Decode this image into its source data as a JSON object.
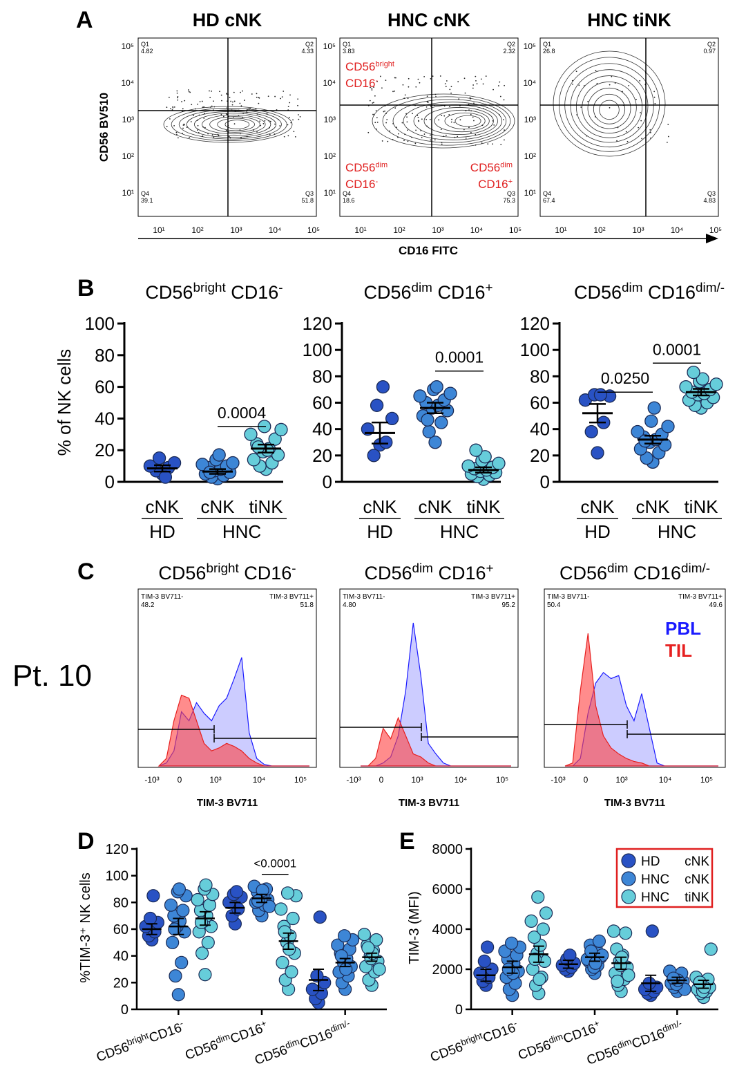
{
  "panel_labels": {
    "a": "A",
    "b": "B",
    "c": "C",
    "d": "D",
    "e": "E"
  },
  "patient_label": "Pt. 10",
  "flow": {
    "y_label": "CD56 BV510",
    "x_label": "CD16 FITC",
    "tick_labels": [
      "10¹",
      "10²",
      "10³",
      "10⁴",
      "10⁵"
    ],
    "gate_labels": [
      {
        "line1": "CD56",
        "sup1": "bright",
        "line2": "CD16",
        "sup2": "-"
      },
      {
        "line1": "CD56",
        "sup1": "dim",
        "line2": "CD16",
        "sup2": "-"
      },
      {
        "line1": "CD56",
        "sup1": "dim",
        "line2": "CD16",
        "sup2": "+"
      }
    ],
    "panels": [
      {
        "title": "HD cNK",
        "q": [
          {
            "name": "Q1",
            "val": "4.82"
          },
          {
            "name": "Q2",
            "val": "4.33"
          },
          {
            "name": "Q4",
            "val": "39.1"
          },
          {
            "name": "Q3",
            "val": "51.8"
          }
        ]
      },
      {
        "title": "HNC cNK",
        "q": [
          {
            "name": "Q1",
            "val": "3.83"
          },
          {
            "name": "Q2",
            "val": "2.32"
          },
          {
            "name": "Q4",
            "val": "18.6"
          },
          {
            "name": "Q3",
            "val": "75.3"
          }
        ]
      },
      {
        "title": "HNC tiNK",
        "q": [
          {
            "name": "Q1",
            "val": "26.8"
          },
          {
            "name": "Q2",
            "val": "0.97"
          },
          {
            "name": "Q4",
            "val": "67.4"
          },
          {
            "name": "Q3",
            "val": "4.83"
          }
        ]
      }
    ]
  },
  "chart_data": [
    {
      "type": "scatter",
      "panel": "B",
      "title": {
        "base": "CD56",
        "sup": "bright",
        "base2": "CD16",
        "sup2": "-"
      },
      "ylabel": "% of NK cells",
      "ylim": [
        0,
        100
      ],
      "yticks": [
        "0",
        "20",
        "40",
        "60",
        "80",
        "100"
      ],
      "categories": [
        "cNK",
        "cNK",
        "tiNK"
      ],
      "groups": [
        "HD",
        "HNC"
      ],
      "colors": [
        "#2952c4",
        "#3d86d6",
        "#66cdda"
      ],
      "means": [
        8.5,
        6.5,
        21
      ],
      "sems": [
        2,
        1.5,
        2.5
      ],
      "points": [
        [
          5,
          7,
          9,
          10,
          12,
          15,
          3
        ],
        [
          2,
          3,
          4,
          5,
          6,
          7,
          8,
          9,
          10,
          11,
          12,
          14,
          17,
          6
        ],
        [
          8,
          10,
          12,
          14,
          17,
          19,
          21,
          24,
          27,
          30,
          33,
          35,
          20,
          22
        ]
      ],
      "sig": [
        {
          "from": 1,
          "to": 2,
          "label": "0.0004",
          "value": 35
        }
      ]
    },
    {
      "type": "scatter",
      "panel": "B",
      "title": {
        "base": "CD56",
        "sup": "dim",
        "base2": "CD16",
        "sup2": "+"
      },
      "ylabel": "",
      "ylim": [
        0,
        120
      ],
      "yticks": [
        "0",
        "20",
        "40",
        "60",
        "80",
        "100",
        "120"
      ],
      "categories": [
        "cNK",
        "cNK",
        "tiNK"
      ],
      "groups": [
        "HD",
        "HNC"
      ],
      "colors": [
        "#2952c4",
        "#3d86d6",
        "#66cdda"
      ],
      "means": [
        37,
        56,
        9
      ],
      "sems": [
        8,
        4,
        2
      ],
      "points": [
        [
          28,
          20,
          30,
          40,
          48,
          58,
          72
        ],
        [
          30,
          38,
          45,
          50,
          54,
          56,
          58,
          60,
          62,
          65,
          67,
          70,
          72,
          47
        ],
        [
          2,
          4,
          5,
          6,
          7,
          8,
          9,
          10,
          11,
          12,
          14,
          16,
          19,
          24
        ]
      ],
      "sig": [
        {
          "from": 1,
          "to": 2,
          "label": "0.0001",
          "value": 84
        }
      ]
    },
    {
      "type": "scatter",
      "panel": "B",
      "title": {
        "base": "CD56",
        "sup": "dim",
        "base2": "CD16",
        "sup2": "dim/-"
      },
      "ylabel": "",
      "ylim": [
        0,
        120
      ],
      "yticks": [
        "0",
        "20",
        "40",
        "60",
        "80",
        "100",
        "120"
      ],
      "categories": [
        "cNK",
        "cNK",
        "tiNK"
      ],
      "groups": [
        "HD",
        "HNC"
      ],
      "colors": [
        "#2952c4",
        "#3d86d6",
        "#66cdda"
      ],
      "means": [
        52,
        32,
        68
      ],
      "sems": [
        7,
        3,
        2.5
      ],
      "points": [
        [
          22,
          38,
          45,
          62,
          65,
          66,
          66
        ],
        [
          15,
          18,
          22,
          25,
          28,
          30,
          32,
          34,
          36,
          38,
          42,
          46,
          56,
          31
        ],
        [
          56,
          58,
          60,
          62,
          64,
          66,
          67,
          68,
          70,
          72,
          74,
          76,
          78,
          83
        ]
      ],
      "sig": [
        {
          "from": 0,
          "to": 1,
          "label": "0.0250",
          "value": 68
        },
        {
          "from": 1,
          "to": 2,
          "label": "0.0001",
          "value": 90
        }
      ]
    },
    {
      "type": "area",
      "panel": "C",
      "title": {
        "base": "CD56",
        "sup": "bright",
        "base2": "CD16",
        "sup2": "-"
      },
      "xlabel": "TIM-3 BV711",
      "xticks": [
        "-10³",
        "0",
        "10³",
        "10⁴",
        "10⁵"
      ],
      "gate_minus": {
        "label": "TIM-3 BV711-",
        "value": "48.2"
      },
      "gate_plus": {
        "label": "TIM-3 BV711+",
        "value": "51.8"
      },
      "x": [
        0,
        0.05,
        0.1,
        0.15,
        0.2,
        0.25,
        0.3,
        0.35,
        0.4,
        0.45,
        0.5,
        0.55,
        0.6,
        0.65,
        0.7,
        0.75,
        0.8,
        0.85,
        0.9,
        1.0
      ],
      "series": [
        {
          "name": "PBL",
          "values": [
            0,
            0.02,
            0.1,
            0.36,
            0.3,
            0.42,
            0.35,
            0.3,
            0.4,
            0.45,
            0.58,
            0.72,
            0.22,
            0.05,
            0.01,
            0,
            0,
            0,
            0,
            0
          ]
        },
        {
          "name": "TIL",
          "values": [
            0,
            0.05,
            0.3,
            0.47,
            0.45,
            0.3,
            0.15,
            0.1,
            0.12,
            0.15,
            0.13,
            0.1,
            0.05,
            0.02,
            0,
            0,
            0,
            0,
            0,
            0
          ]
        }
      ]
    },
    {
      "type": "area",
      "panel": "C",
      "title": {
        "base": "CD56",
        "sup": "dim",
        "base2": "CD16",
        "sup2": "+"
      },
      "xlabel": "TIM-3 BV711",
      "xticks": [
        "-10³",
        "0",
        "10³",
        "10⁴",
        "10⁵"
      ],
      "gate_minus": {
        "label": "TIM-3 BV711-",
        "value": "4.80"
      },
      "gate_plus": {
        "label": "TIM-3 BV711+",
        "value": "95.2"
      },
      "x": [
        0,
        0.05,
        0.1,
        0.15,
        0.2,
        0.25,
        0.3,
        0.35,
        0.4,
        0.45,
        0.5,
        0.55,
        0.6,
        0.65,
        0.7,
        0.75,
        0.8,
        0.85,
        0.9,
        1.0
      ],
      "series": [
        {
          "name": "PBL",
          "values": [
            0,
            0,
            0,
            0.02,
            0.06,
            0.2,
            0.5,
            0.95,
            0.6,
            0.15,
            0.08,
            0.02,
            0,
            0,
            0,
            0,
            0,
            0,
            0,
            0
          ]
        },
        {
          "name": "TIL",
          "values": [
            0,
            0,
            0.05,
            0.25,
            0.18,
            0.32,
            0.2,
            0.08,
            0.06,
            0.02,
            0,
            0,
            0,
            0,
            0,
            0,
            0,
            0,
            0,
            0
          ]
        }
      ]
    },
    {
      "type": "area",
      "panel": "C",
      "title": {
        "base": "CD56",
        "sup": "dim",
        "base2": "CD16",
        "sup2": "dim/-"
      },
      "xlabel": "TIM-3 BV711",
      "xticks": [
        "-10³",
        "0",
        "10³",
        "10⁴",
        "10⁵"
      ],
      "gate_minus": {
        "label": "TIM-3 BV711-",
        "value": "50.4"
      },
      "gate_plus": {
        "label": "TIM-3 BV711+",
        "value": "49.6"
      },
      "x": [
        0,
        0.05,
        0.1,
        0.15,
        0.2,
        0.25,
        0.3,
        0.35,
        0.4,
        0.45,
        0.5,
        0.55,
        0.6,
        0.65,
        0.7,
        0.75,
        0.8,
        0.85,
        0.9,
        1.0
      ],
      "series": [
        {
          "name": "PBL",
          "values": [
            0,
            0,
            0.05,
            0.35,
            0.55,
            0.62,
            0.58,
            0.6,
            0.4,
            0.3,
            0.48,
            0.25,
            0.02,
            0,
            0,
            0,
            0,
            0,
            0,
            0
          ]
        },
        {
          "name": "TIL",
          "values": [
            0,
            0.02,
            0.5,
            0.88,
            0.4,
            0.2,
            0.12,
            0.08,
            0.05,
            0.03,
            0.02,
            0,
            0,
            0,
            0,
            0,
            0,
            0,
            0,
            0
          ]
        }
      ]
    },
    {
      "type": "scatter",
      "panel": "D",
      "ylabel": "%TIM-3⁺ NK cells",
      "ylim": [
        0,
        120
      ],
      "yticks": [
        "0",
        "20",
        "40",
        "60",
        "80",
        "100",
        "120"
      ],
      "groups": [
        {
          "base": "CD56",
          "sup": "bright",
          "base2": "CD16",
          "sup2": "-"
        },
        {
          "base": "CD56",
          "sup": "dim",
          "base2": "CD16",
          "sup2": "+"
        },
        {
          "base": "CD56",
          "sup": "dim",
          "base2": "CD16",
          "sup2": "dim/-"
        }
      ],
      "series": [
        {
          "name": "HD cNK",
          "color": "#2952c4",
          "means": [
            60,
            76,
            22
          ],
          "sems": [
            4,
            4,
            8
          ],
          "points": [
            [
              52,
              55,
              58,
              62,
              65,
              68,
              85
            ],
            [
              64,
              70,
              75,
              80,
              84,
              86,
              88
            ],
            [
              5,
              8,
              12,
              15,
              20,
              25,
              69
            ]
          ]
        },
        {
          "name": "HNC cNK",
          "color": "#3d86d6",
          "means": [
            62,
            83,
            35
          ],
          "sems": [
            6,
            3,
            3
          ],
          "points": [
            [
              11,
              25,
              35,
              50,
              58,
              62,
              66,
              70,
              74,
              78,
              85,
              88,
              90,
              60
            ],
            [
              70,
              74,
              78,
              80,
              82,
              84,
              86,
              88,
              90,
              92,
              77,
              83,
              89,
              81
            ],
            [
              15,
              20,
              25,
              28,
              32,
              35,
              38,
              42,
              45,
              48,
              52,
              55,
              30,
              40
            ]
          ]
        },
        {
          "name": "HNC tiNK",
          "color": "#66cdda",
          "means": [
            68,
            51,
            39
          ],
          "sems": [
            5,
            6,
            3
          ],
          "points": [
            [
              26,
              42,
              50,
              58,
              62,
              66,
              70,
              74,
              78,
              82,
              86,
              90,
              93,
              65
            ],
            [
              15,
              22,
              28,
              35,
              42,
              50,
              55,
              62,
              68,
              75,
              85,
              87,
              45,
              58
            ],
            [
              18,
              22,
              28,
              32,
              36,
              40,
              44,
              48,
              52,
              56,
              30,
              38,
              42,
              46
            ]
          ]
        }
      ],
      "sig": [
        {
          "group": 1,
          "from": 1,
          "to": 2,
          "label": "<0.0001",
          "value": 101
        }
      ]
    },
    {
      "type": "scatter",
      "panel": "E",
      "ylabel": "TIM-3 (MFI)",
      "ylim": [
        0,
        8000
      ],
      "yticks": [
        "0",
        "2000",
        "4000",
        "6000",
        "8000"
      ],
      "groups": [
        {
          "base": "CD56",
          "sup": "bright",
          "base2": "CD16",
          "sup2": "-"
        },
        {
          "base": "CD56",
          "sup": "dim",
          "base2": "CD16",
          "sup2": "+"
        },
        {
          "base": "CD56",
          "sup": "dim",
          "base2": "CD16",
          "sup2": "dim/-"
        }
      ],
      "series": [
        {
          "name": "HD cNK",
          "color": "#2952c4",
          "means": [
            1700,
            2250,
            1300
          ],
          "sems": [
            300,
            200,
            400
          ],
          "points": [
            [
              1200,
              1400,
              1600,
              1800,
              2000,
              2400,
              3100
            ],
            [
              1900,
              2000,
              2100,
              2200,
              2300,
              2500,
              2700
            ],
            [
              700,
              800,
              900,
              1000,
              1100,
              1300,
              3900
            ]
          ]
        },
        {
          "name": "HNC cNK",
          "color": "#3d86d6",
          "means": [
            2100,
            2600,
            1450
          ],
          "sems": [
            300,
            200,
            150
          ],
          "points": [
            [
              700,
              1000,
              1300,
              1600,
              1900,
              2100,
              2300,
              2500,
              2700,
              2900,
              3100,
              3300,
              1800,
              2000
            ],
            [
              1800,
              2000,
              2200,
              2400,
              2600,
              2800,
              3000,
              3200,
              3400,
              2500,
              2700,
              2100,
              2300,
              2900
            ],
            [
              900,
              1100,
              1200,
              1300,
              1400,
              1500,
              1600,
              1700,
              1800,
              1900,
              1000,
              1250,
              1450,
              1550
            ]
          ]
        },
        {
          "name": "HNC tiNK",
          "color": "#66cdda",
          "means": [
            2750,
            2300,
            1250
          ],
          "sems": [
            400,
            300,
            200
          ],
          "points": [
            [
              800,
              1200,
              1600,
              2000,
              2400,
              2800,
              3200,
              3600,
              4000,
              4400,
              4800,
              5600,
              1500,
              2500
            ],
            [
              900,
              1200,
              1500,
              1800,
              2100,
              2400,
              2700,
              3000,
              3800,
              3900,
              1700,
              2200,
              2600,
              1400
            ],
            [
              600,
              800,
              900,
              1000,
              1100,
              1200,
              1300,
              1400,
              1500,
              1600,
              3000,
              900,
              1100,
              1350
            ]
          ]
        }
      ]
    }
  ],
  "legend": {
    "items": [
      {
        "label": "HD",
        "label2": "cNK",
        "color": "#2952c4"
      },
      {
        "label": "HNC",
        "label2": "cNK",
        "color": "#3d86d6"
      },
      {
        "label": "HNC",
        "label2": "tiNK",
        "color": "#66cdda"
      }
    ],
    "border_color": "#e02020"
  },
  "hist_legend": {
    "pbl": "PBL",
    "til": "TIL",
    "pbl_color": "#1a1aff",
    "til_color": "#e62020"
  },
  "colors": {
    "pbl_fill": "#8080ff",
    "til_fill": "#ff4040",
    "gate_red": "#e02020"
  }
}
